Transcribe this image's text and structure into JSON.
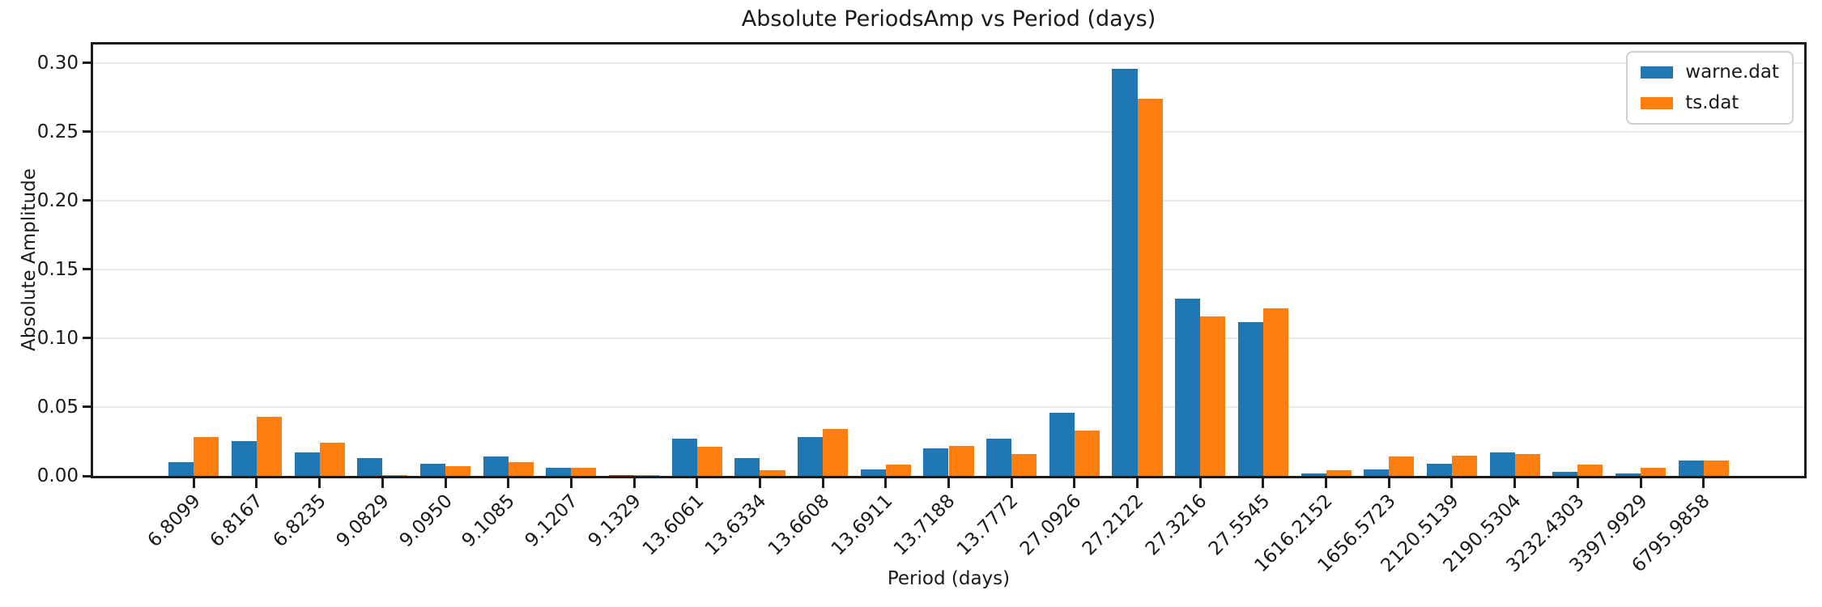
{
  "figure": {
    "background": "#ffffff",
    "text_color": "#1a1a1a",
    "spine_color": "#1c1c1c",
    "grid_color": "#eaeaea"
  },
  "chart_data": {
    "type": "bar",
    "title": "Absolute PeriodsAmp vs Period (days)",
    "xlabel": "Period (days)",
    "ylabel": "Absolute Amplitude",
    "categories": [
      "6.8099",
      "6.8167",
      "6.8235",
      "9.0829",
      "9.0950",
      "9.1085",
      "9.1207",
      "9.1329",
      "13.6061",
      "13.6334",
      "13.6608",
      "13.6911",
      "13.7188",
      "13.7772",
      "27.0926",
      "27.2122",
      "27.3216",
      "27.5545",
      "1616.2152",
      "1656.5723",
      "2120.5139",
      "2190.5304",
      "3232.4303",
      "3397.9929",
      "6795.9858"
    ],
    "series": [
      {
        "name": "warne.dat",
        "color": "#1f77b4",
        "values": [
          0.01,
          0.025,
          0.017,
          0.013,
          0.009,
          0.014,
          0.006,
          0.0005,
          0.027,
          0.013,
          0.028,
          0.005,
          0.02,
          0.027,
          0.046,
          0.296,
          0.129,
          0.112,
          0.002,
          0.005,
          0.009,
          0.017,
          0.003,
          0.002,
          0.011
        ]
      },
      {
        "name": "ts.dat",
        "color": "#ff7f0e",
        "values": [
          0.028,
          0.043,
          0.024,
          0.0005,
          0.007,
          0.01,
          0.006,
          0.0005,
          0.021,
          0.004,
          0.034,
          0.008,
          0.022,
          0.016,
          0.033,
          0.274,
          0.116,
          0.122,
          0.004,
          0.014,
          0.015,
          0.016,
          0.008,
          0.006,
          0.011
        ]
      }
    ],
    "ylim": [
      0,
      0.3134
    ],
    "yticks": [
      "0.00",
      "0.05",
      "0.10",
      "0.15",
      "0.20",
      "0.25",
      "0.30"
    ],
    "grid": "horizontal-only",
    "legend": {
      "position": "upper-right",
      "entries": [
        "warne.dat",
        "ts.dat"
      ]
    },
    "x_tick_rotation_deg": 45,
    "bar_width_fraction": 0.4,
    "x_inner_margin_units": 1.6
  }
}
